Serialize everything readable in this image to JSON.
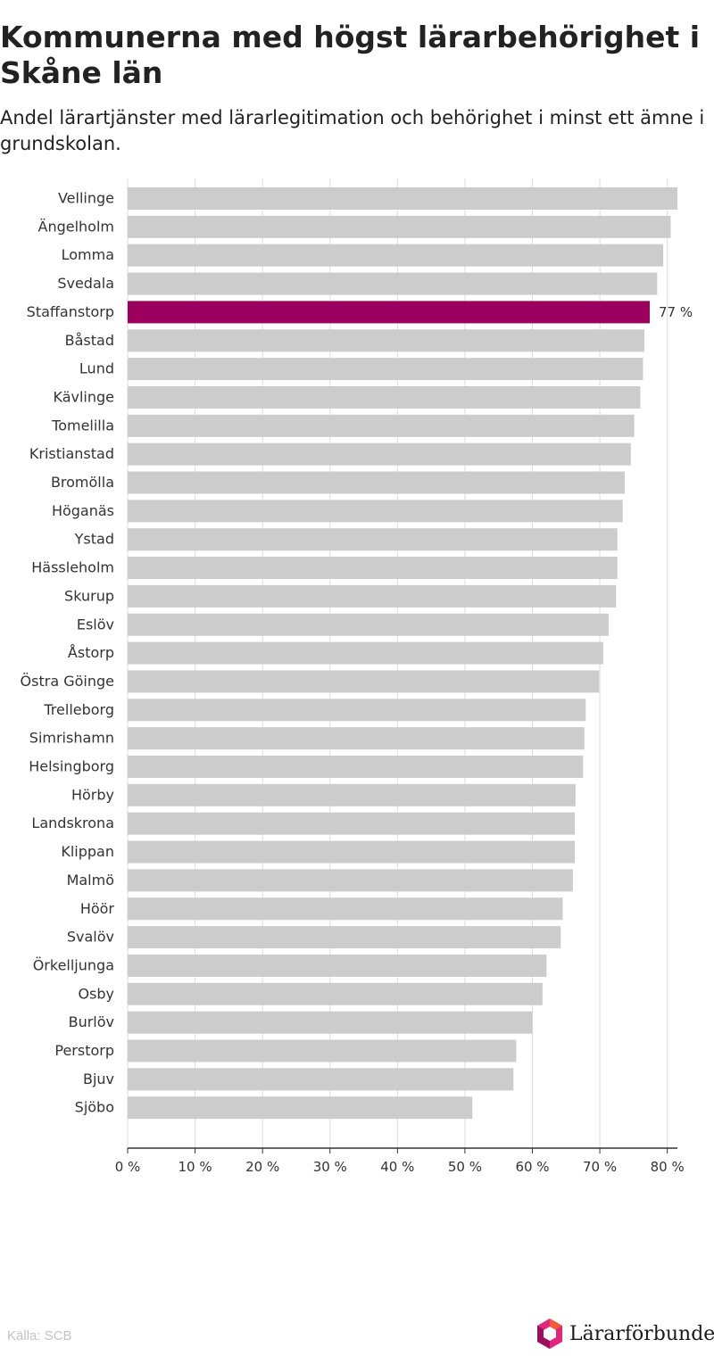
{
  "header": {
    "title": "Kommunerna med högst lärarbehörighet i Skåne län",
    "subtitle": "Andel lärartjänster med lärarlegitimation och behörighet i minst ett ämne i grundskolan."
  },
  "footer": {
    "source": "Källa: SCB",
    "brand": "Lärarförbundet"
  },
  "colors": {
    "bar": "#cccccc",
    "highlight": "#9c005f",
    "grid": "#dddddd",
    "axis": "#333333"
  },
  "chart_data": {
    "type": "bar",
    "orientation": "horizontal",
    "categories": [
      "Vellinge",
      "Ängelholm",
      "Lomma",
      "Svedala",
      "Staffanstorp",
      "Båstad",
      "Lund",
      "Kävlinge",
      "Tomelilla",
      "Kristianstad",
      "Bromölla",
      "Höganäs",
      "Ystad",
      "Hässleholm",
      "Skurup",
      "Eslöv",
      "Åstorp",
      "Östra Göinge",
      "Trelleborg",
      "Simrishamn",
      "Helsingborg",
      "Hörby",
      "Landskrona",
      "Klippan",
      "Malmö",
      "Höör",
      "Svalöv",
      "Örkelljunga",
      "Osby",
      "Burlöv",
      "Perstorp",
      "Bjuv",
      "Sjöbo"
    ],
    "values": [
      81.5,
      80.5,
      79.4,
      78.5,
      77.4,
      76.6,
      76.4,
      76.0,
      75.1,
      74.6,
      73.7,
      73.4,
      72.6,
      72.6,
      72.4,
      71.3,
      70.5,
      69.9,
      67.9,
      67.7,
      67.5,
      66.4,
      66.3,
      66.3,
      66.0,
      64.5,
      64.2,
      62.1,
      61.5,
      60.0,
      57.6,
      57.2,
      51.1
    ],
    "highlight": "Staffanstorp",
    "annotations": [
      {
        "category": "Staffanstorp",
        "label": "77 %"
      }
    ],
    "xticks": [
      "0 %",
      "10 %",
      "20 %",
      "30 %",
      "40 %",
      "50 %",
      "60 %",
      "70 %",
      "80 %"
    ],
    "xlim": [
      0,
      81.5
    ],
    "grid": true,
    "legend": "none"
  }
}
